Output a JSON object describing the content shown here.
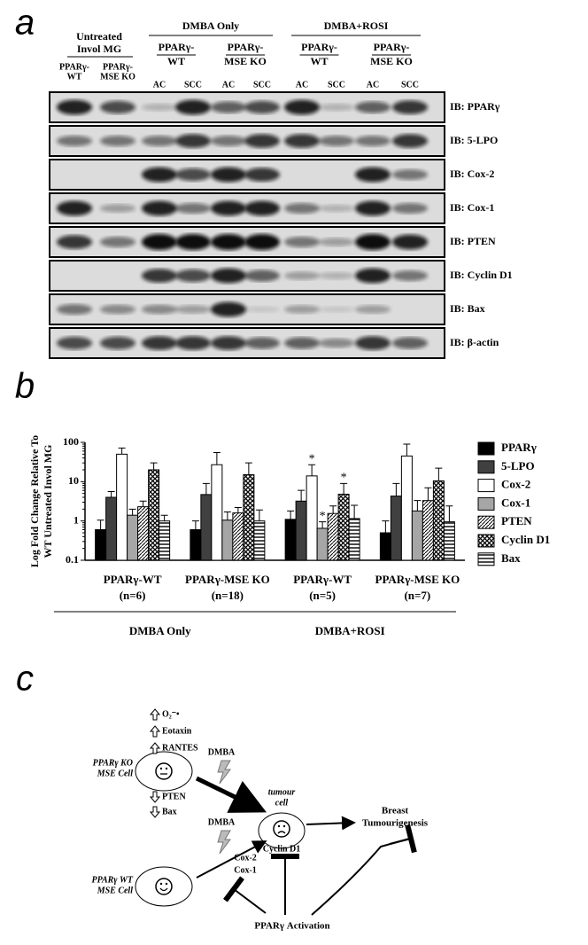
{
  "panel_a": {
    "label": "a",
    "untreated": {
      "title": [
        "Untreated",
        "Invol MG"
      ],
      "lanes": [
        [
          "PPARγ-",
          "WT"
        ],
        [
          "PPARγ-",
          "MSE KO"
        ]
      ]
    },
    "treatments": [
      {
        "title": "DMBA Only",
        "genotypes": [
          {
            "name": [
              "PPARγ-",
              "WT"
            ],
            "lanes": [
              "AC",
              "SCC"
            ]
          },
          {
            "name": [
              "PPARγ-",
              "MSE KO"
            ],
            "lanes": [
              "AC",
              "SCC"
            ]
          }
        ]
      },
      {
        "title": "DMBA+ROSI",
        "genotypes": [
          {
            "name": [
              "PPARγ-",
              "WT"
            ],
            "lanes": [
              "AC",
              "SCC"
            ]
          },
          {
            "name": [
              "PPARγ-",
              "MSE KO"
            ],
            "lanes": [
              "AC",
              "SCC"
            ]
          }
        ]
      }
    ],
    "rows": [
      "IB: PPARγ",
      "IB: 5-LPO",
      "IB: Cox-2",
      "IB: Cox-1",
      "IB: PTEN",
      "IB: Cyclin D1",
      "IB: Bax",
      "IB: β-actin"
    ]
  },
  "chart_data": {
    "type": "bar",
    "panel_label": "b",
    "ylabel": [
      "Log Fold Change Relative To",
      "WT Untreated Invol MG"
    ],
    "log_scale": true,
    "ylim": [
      0.1,
      100
    ],
    "yticks": [
      0.1,
      1,
      10,
      100
    ],
    "categories": [
      "PPARγ-WT",
      "PPARγ-MSE KO",
      "PPARγ-WT",
      "PPARγ-MSE KO"
    ],
    "n_labels": [
      "(n=6)",
      "(n=18)",
      "(n=5)",
      "(n=7)"
    ],
    "groups": [
      "DMBA Only",
      "DMBA+ROSI"
    ],
    "series": [
      {
        "name": "PPARγ",
        "color": "#000000",
        "values": [
          0.6,
          0.6,
          1.1,
          0.5
        ],
        "errors": [
          0.45,
          0.4,
          0.7,
          0.5
        ]
      },
      {
        "name": "5-LPO",
        "color": "#404040",
        "values": [
          4,
          4.7,
          3.2,
          4.3
        ],
        "errors": [
          1.6,
          4.3,
          2.8,
          4.7
        ]
      },
      {
        "name": "Cox-2",
        "color": "#ffffff",
        "values": [
          50,
          27,
          14,
          45
        ],
        "errors": [
          22,
          28,
          13,
          45
        ],
        "markers": [
          null,
          null,
          "*",
          null
        ]
      },
      {
        "name": "Cox-1",
        "color": "#a6a6a6",
        "values": [
          1.4,
          1.05,
          0.65,
          1.8
        ],
        "errors": [
          0.6,
          0.65,
          0.3,
          1.5
        ],
        "markers": [
          null,
          null,
          "*",
          null
        ]
      },
      {
        "name": "PTEN",
        "color": "#ffffff",
        "pattern": "diagonal",
        "values": [
          2.3,
          1.6,
          1.55,
          3.3
        ],
        "errors": [
          0.9,
          0.6,
          0.85,
          3.7
        ]
      },
      {
        "name": "Cyclin D1",
        "color": "#ffffff",
        "pattern": "checker",
        "values": [
          20,
          15,
          4.8,
          10.5
        ],
        "errors": [
          10,
          15,
          4.2,
          11.5
        ],
        "markers": [
          null,
          null,
          "*",
          null
        ]
      },
      {
        "name": "Bax",
        "color": "#ffffff",
        "pattern": "horizontal",
        "values": [
          1,
          1,
          1.15,
          0.95
        ],
        "errors": [
          0.4,
          0.9,
          1.35,
          1.45
        ]
      }
    ]
  },
  "panel_c": {
    "label": "c",
    "ko_cell": [
      "PPARγ KO",
      "MSE Cell"
    ],
    "wt_cell": [
      "PPARγ WT",
      "MSE Cell"
    ],
    "up": [
      "O₂⁻•",
      "Eotaxin",
      "RANTES"
    ],
    "down": [
      "PTEN",
      "Bax"
    ],
    "dmba": [
      "DMBA",
      "DMBA"
    ],
    "tumour": [
      "tumour",
      "cell"
    ],
    "cyclin": "Cyclin D1",
    "cox": [
      "Cox-2",
      "Cox-1"
    ],
    "outcome": [
      "Breast",
      "Tumourigenesis"
    ],
    "activation": "PPARγ Activation"
  }
}
